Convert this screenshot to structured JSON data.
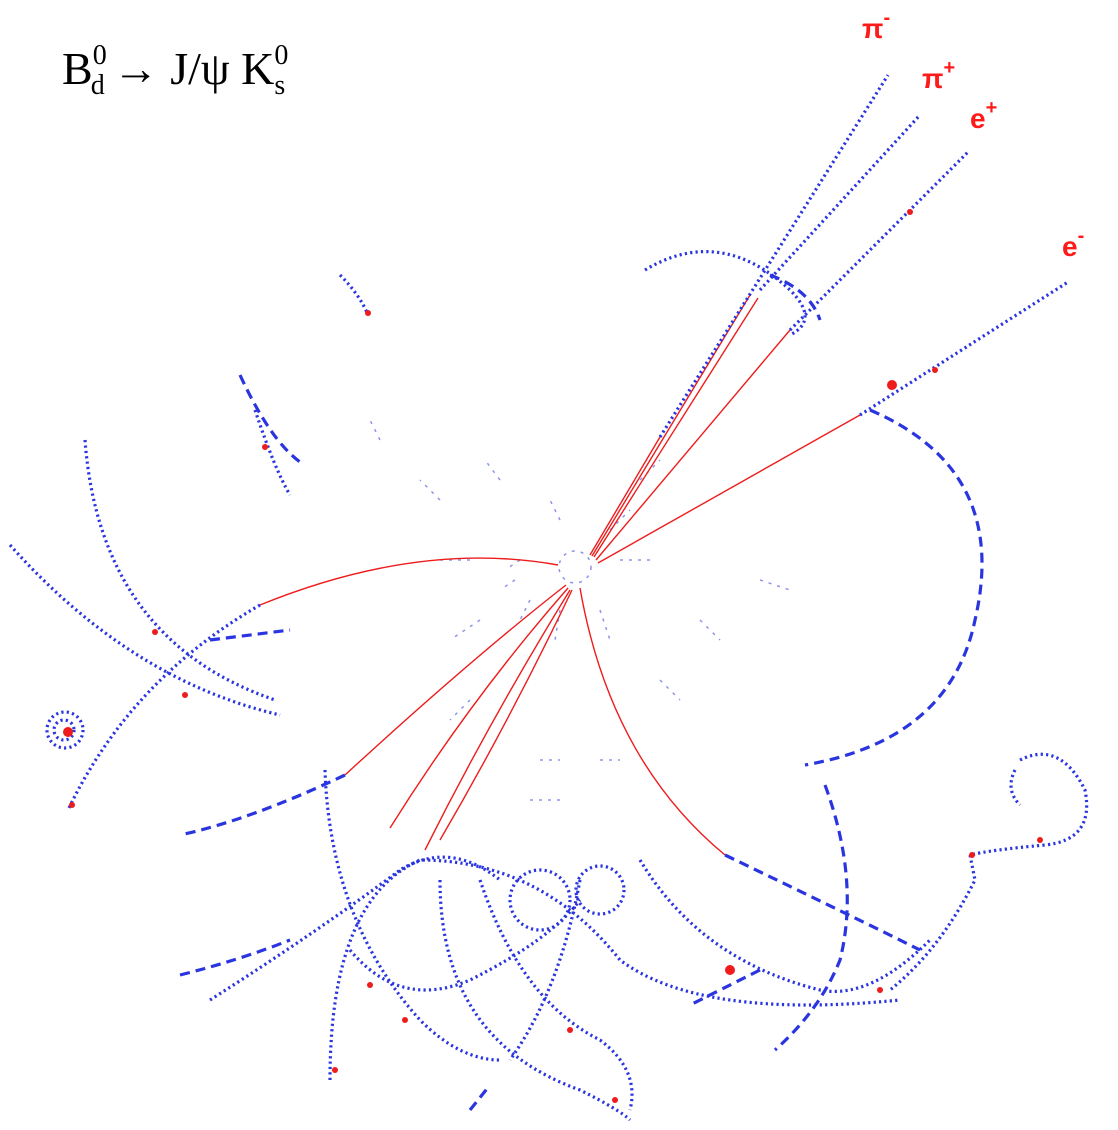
{
  "title": {
    "base": "B",
    "sub": "d",
    "sup": "0",
    "products": "→ J/ψ K",
    "products_sub": "s",
    "products_sup": "0"
  },
  "particle_labels": [
    {
      "base": "π",
      "sup": "-"
    },
    {
      "base": "π",
      "sup": "+"
    },
    {
      "base": "e",
      "sup": "+"
    },
    {
      "base": "e",
      "sup": "-"
    }
  ]
}
